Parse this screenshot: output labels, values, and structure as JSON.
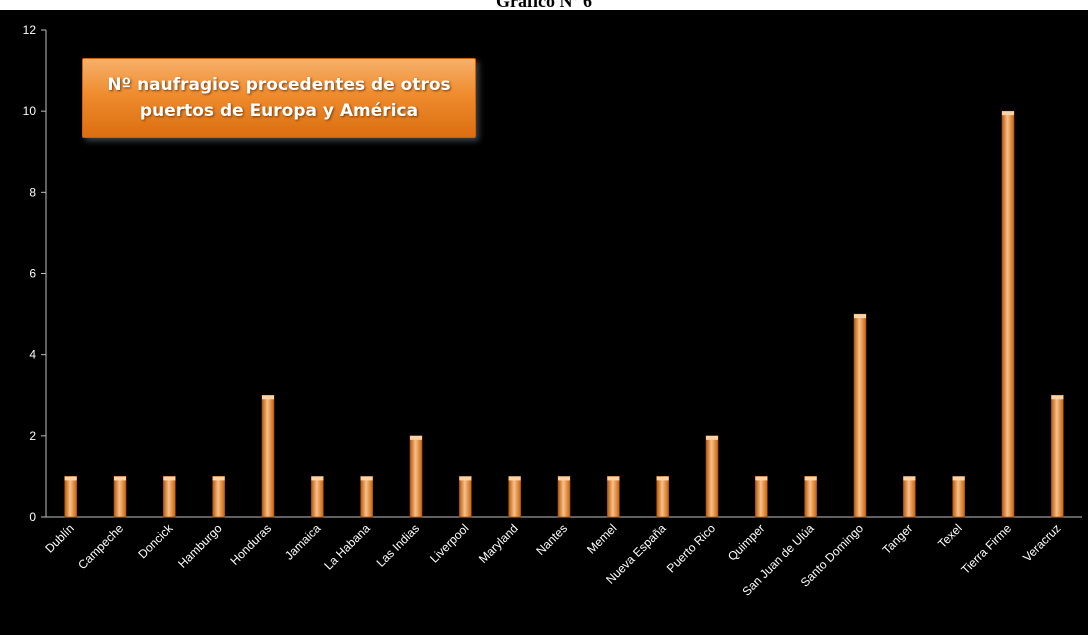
{
  "page_heading": "Gráfico Nº 6",
  "callout": "Nº naufragios procedentes de  otros puertos de Europa y América",
  "colors": {
    "background": "#000000",
    "bar": "#ef8c2e",
    "bar_highlight": "#f8c08a",
    "axis": "#bfbfbf",
    "text": "#ffffff"
  },
  "chart_data": {
    "type": "bar",
    "title": "Nº naufragios procedentes de  otros puertos de Europa y América",
    "xlabel": "",
    "ylabel": "",
    "ylim": [
      0,
      12
    ],
    "yticks": [
      0,
      2,
      4,
      6,
      8,
      10,
      12
    ],
    "grid": false,
    "legend": "none",
    "categories": [
      "Dublín",
      "Campeche",
      "Doncick",
      "Hamburgo",
      "Honduras",
      "Jamaica",
      "La Habana",
      "Las Indias",
      "Liverpool",
      "Maryland",
      "Nantes",
      "Memel",
      "Nueva España",
      "Puerto Rico",
      "Quimper",
      "San Juan de Ulúa",
      "Santo Domingo",
      "Tanger",
      "Texel",
      "Tierra Firme",
      "Veracruz"
    ],
    "values": [
      1,
      1,
      1,
      1,
      3,
      1,
      1,
      2,
      1,
      1,
      1,
      1,
      1,
      2,
      1,
      1,
      5,
      1,
      1,
      10,
      3
    ]
  }
}
